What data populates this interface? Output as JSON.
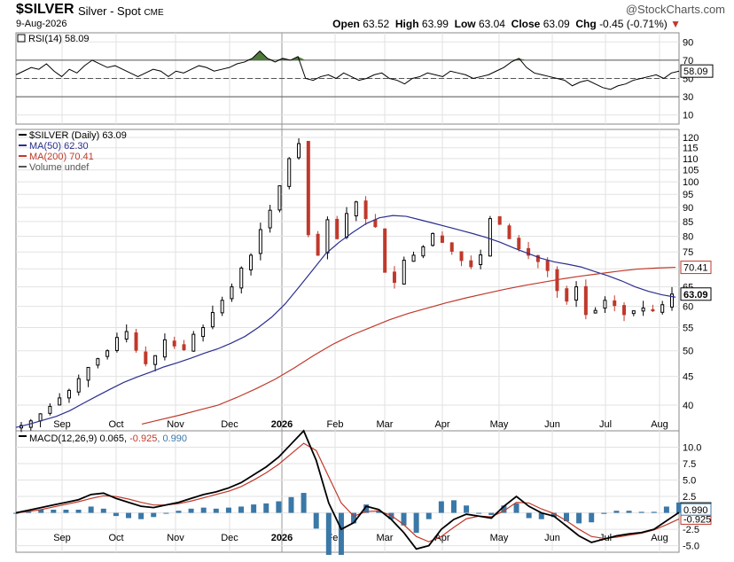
{
  "header": {
    "symbol": "$SILVER",
    "name": "Silver - Spot",
    "exchange": "CME",
    "date": "9-Aug-2026",
    "brand": "@StockCharts.com",
    "open_label": "Open",
    "open": "63.52",
    "high_label": "High",
    "high": "63.99",
    "low_label": "Low",
    "low": "63.04",
    "close_label": "Close",
    "close": "63.09",
    "chg_label": "Chg",
    "chg": "-0.45 (-0.71%)",
    "chg_arrow": "▼"
  },
  "colors": {
    "ma50": "#2b2f8e",
    "ma200": "#c0392b",
    "up": "#000000",
    "down": "#c0392b",
    "rsi_fill": "#4d7a3a",
    "macd_line": "#000000",
    "signal_line": "#c0392b",
    "hist": "#3a78a8",
    "grid": "#e2e2e2"
  },
  "months": [
    "Sep",
    "Oct",
    "Nov",
    "Dec",
    "2026",
    "Feb",
    "Mar",
    "Apr",
    "May",
    "Jun",
    "Jul",
    "Aug"
  ],
  "chart_data": [
    {
      "type": "line",
      "panel": "RSI",
      "title": "RSI(14) 58.09",
      "series": [
        {
          "name": "RSI(14)",
          "last": 58.09,
          "values": [
            54,
            58,
            62,
            60,
            66,
            58,
            52,
            60,
            56,
            64,
            70,
            66,
            62,
            64,
            60,
            56,
            52,
            56,
            60,
            58,
            52,
            58,
            56,
            60,
            64,
            62,
            58,
            60,
            62,
            66,
            68,
            72,
            80,
            72,
            68,
            72,
            70,
            74,
            50,
            48,
            52,
            54,
            50,
            56,
            52,
            48,
            50,
            54,
            56,
            50,
            48,
            44,
            50,
            52,
            56,
            54,
            52,
            58,
            56,
            54,
            50,
            52,
            54,
            58,
            62,
            68,
            72,
            62,
            56,
            54,
            52,
            50,
            48,
            42,
            46,
            48,
            44,
            40,
            38,
            42,
            44,
            48,
            50,
            52,
            54,
            50,
            56,
            58
          ]
        }
      ],
      "levels": [
        70,
        50,
        30
      ],
      "yticks": [
        10,
        30,
        50,
        70,
        90
      ],
      "ylim": [
        0,
        100
      ]
    },
    {
      "type": "candlestick",
      "panel": "Price",
      "legend": [
        "$SILVER (Daily) 63.09",
        "MA(50) 62.30",
        "MA(200) 70.41",
        "Volume undef"
      ],
      "yticks": [
        40,
        45,
        50,
        55,
        60,
        65,
        70,
        75,
        80,
        85,
        90,
        95,
        100,
        105,
        110,
        115,
        120
      ],
      "scale": "log",
      "ylim": [
        36,
        124
      ],
      "last_price": 63.09,
      "ma200_last": 70.41,
      "close": [
        36.8,
        37.5,
        38.6,
        39.8,
        41.2,
        42.5,
        44.6,
        46.7,
        48.4,
        50.0,
        52.8,
        54.1,
        50.1,
        47.4,
        49.0,
        52.3,
        51.0,
        50.2,
        53.5,
        55.0,
        58.5,
        61.5,
        65.0,
        70.2,
        74.0,
        82.2,
        89.0,
        98.4,
        110.0,
        117.0,
        80.5,
        74.0,
        85.6,
        79.2,
        87.8,
        92.1,
        86.0,
        83.2,
        69.0,
        66.2,
        72.5,
        74.0,
        76.6,
        80.9,
        78.0,
        75.2,
        72.4,
        70.6,
        74.1,
        86.0,
        84.0,
        79.2,
        76.0,
        74.0,
        72.1,
        69.5,
        64.0,
        61.3,
        65.0,
        58.0,
        59.0,
        61.5,
        60.2,
        58.0,
        58.9,
        59.6,
        58.9,
        60.4,
        63.1
      ],
      "ma50": [
        36.5,
        37.0,
        37.6,
        38.2,
        39.1,
        40.3,
        41.5,
        42.7,
        43.9,
        44.9,
        45.8,
        46.8,
        47.6,
        48.5,
        49.5,
        50.4,
        51.6,
        53.0,
        55.0,
        57.4,
        60.6,
        64.8,
        69.4,
        74.4,
        78.0,
        81.2,
        84.2,
        86.3,
        87.1,
        86.8,
        85.6,
        84.4,
        83.2,
        82.0,
        80.8,
        79.5,
        78.0,
        76.2,
        74.6,
        73.1,
        72.0,
        71.3,
        70.5,
        69.2,
        68.0,
        66.6,
        65.0,
        63.8,
        62.9,
        62.3
      ],
      "ma200": [
        37.0,
        37.7,
        38.4,
        39.2,
        40.0,
        41.3,
        42.8,
        44.5,
        46.6,
        49.0,
        51.3,
        53.3,
        55.0,
        56.8,
        58.3,
        59.6,
        60.9,
        62.1,
        63.2,
        64.3,
        65.3,
        66.2,
        67.1,
        67.9,
        68.6,
        69.3,
        69.9,
        70.2,
        70.41
      ]
    },
    {
      "type": "line",
      "panel": "MACD",
      "title": "MACD(12,26,9)",
      "series": [
        {
          "name": "MACD",
          "last": 0.065,
          "values": [
            0.0,
            0.4,
            0.8,
            1.2,
            1.6,
            2.0,
            2.8,
            3.0,
            2.2,
            1.6,
            1.0,
            0.8,
            1.2,
            1.6,
            2.2,
            2.8,
            3.2,
            3.8,
            4.6,
            5.8,
            7.0,
            8.5,
            10.5,
            12.5,
            8.0,
            1.5,
            -2.5,
            -1.5,
            1.0,
            0.5,
            -1.0,
            -3.0,
            -5.5,
            -5.0,
            -2.5,
            -1.0,
            -0.2,
            -0.5,
            -0.8,
            1.0,
            2.5,
            1.0,
            0.0,
            -0.5,
            -2.0,
            -3.5,
            -4.5,
            -4.0,
            -3.5,
            -3.2,
            -3.0,
            -2.5,
            -1.2,
            0.065
          ]
        },
        {
          "name": "Signal",
          "last": -0.925,
          "values": [
            0.0,
            0.2,
            0.5,
            0.9,
            1.3,
            1.7,
            2.2,
            2.6,
            2.5,
            2.1,
            1.6,
            1.2,
            1.2,
            1.4,
            1.8,
            2.3,
            2.8,
            3.3,
            4.0,
            5.0,
            6.1,
            7.4,
            9.0,
            10.6,
            9.5,
            5.5,
            1.5,
            -0.5,
            0.2,
            0.3,
            -0.4,
            -1.8,
            -3.6,
            -4.4,
            -3.6,
            -2.2,
            -0.9,
            -0.5,
            -0.6,
            0.3,
            1.6,
            1.5,
            0.6,
            -0.1,
            -1.2,
            -2.5,
            -3.6,
            -3.9,
            -3.7,
            -3.4,
            -3.1,
            -2.6,
            -1.8,
            -0.925
          ]
        },
        {
          "name": "Histogram",
          "last": 0.99
        }
      ],
      "yticks": [
        10.0,
        7.5,
        5.0,
        2.5,
        0.0,
        -2.5,
        -5.0
      ],
      "ytick_labels": [
        "10.0",
        "7.5",
        "5.0",
        "2.5",
        "0.0",
        "-2.5",
        "-5.0"
      ],
      "ylim": [
        -6,
        12.5
      ]
    }
  ]
}
